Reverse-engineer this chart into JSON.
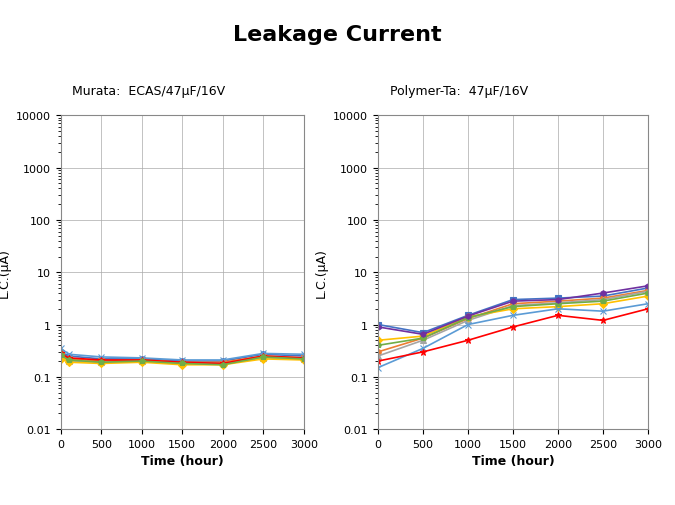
{
  "title": "Leakage Current",
  "title_fontsize": 16,
  "title_fontweight": "bold",
  "left_subtitle": "Murata:  ECAS/47μF/16V",
  "right_subtitle": "Polymer-Ta:  47μF/16V",
  "xlabel": "Time (hour)",
  "ylabel": "L.C.(μA)",
  "x_ticks": [
    0,
    500,
    1000,
    1500,
    2000,
    2500,
    3000
  ],
  "xlim": [
    0,
    3000
  ],
  "ylim": [
    0.01,
    10000
  ],
  "left_series": [
    {
      "x": [
        0,
        100,
        500,
        1000,
        1500,
        2000,
        2500,
        3000
      ],
      "y": [
        0.3,
        0.25,
        0.22,
        0.22,
        0.2,
        0.2,
        0.27,
        0.25
      ],
      "color": "#4472C4",
      "marker": "o",
      "ms": 4
    },
    {
      "x": [
        0,
        100,
        500,
        1000,
        1500,
        2000,
        2500,
        3000
      ],
      "y": [
        0.28,
        0.22,
        0.2,
        0.21,
        0.19,
        0.19,
        0.25,
        0.23
      ],
      "color": "#ED7D31",
      "marker": "s",
      "ms": 4
    },
    {
      "x": [
        0,
        100,
        500,
        1000,
        1500,
        2000,
        2500,
        3000
      ],
      "y": [
        0.25,
        0.2,
        0.19,
        0.2,
        0.18,
        0.18,
        0.23,
        0.22
      ],
      "color": "#A5A5A5",
      "marker": "^",
      "ms": 4
    },
    {
      "x": [
        0,
        100,
        500,
        1000,
        1500,
        2000,
        2500,
        3000
      ],
      "y": [
        0.22,
        0.19,
        0.18,
        0.19,
        0.17,
        0.17,
        0.22,
        0.21
      ],
      "color": "#FFC000",
      "marker": "D",
      "ms": 4
    },
    {
      "x": [
        0,
        100,
        500,
        1000,
        1500,
        2000,
        2500,
        3000
      ],
      "y": [
        0.35,
        0.27,
        0.24,
        0.23,
        0.21,
        0.21,
        0.28,
        0.27
      ],
      "color": "#5B9BD5",
      "marker": "x",
      "ms": 4
    },
    {
      "x": [
        0,
        100,
        500,
        1000,
        1500,
        2000,
        2500,
        3000
      ],
      "y": [
        0.28,
        0.23,
        0.21,
        0.21,
        0.19,
        0.18,
        0.25,
        0.23
      ],
      "color": "#FF0000",
      "marker": "*",
      "ms": 5
    },
    {
      "x": [
        0,
        100,
        500,
        1000,
        1500,
        2000,
        2500,
        3000
      ],
      "y": [
        0.26,
        0.21,
        0.19,
        0.2,
        0.18,
        0.17,
        0.24,
        0.22
      ],
      "color": "#70AD47",
      "marker": "p",
      "ms": 4
    }
  ],
  "right_series": [
    {
      "x": [
        0,
        500,
        1000,
        1500,
        2000,
        2500,
        3000
      ],
      "y": [
        1.0,
        0.7,
        1.5,
        3.0,
        3.2,
        3.5,
        5.0
      ],
      "color": "#4472C4",
      "marker": "s",
      "ms": 5
    },
    {
      "x": [
        0,
        500,
        1000,
        1500,
        2000,
        2500,
        3000
      ],
      "y": [
        0.3,
        0.55,
        1.3,
        2.5,
        2.8,
        3.2,
        4.5
      ],
      "color": "#ED7D31",
      "marker": "o",
      "ms": 4
    },
    {
      "x": [
        0,
        500,
        1000,
        1500,
        2000,
        2500,
        3000
      ],
      "y": [
        0.25,
        0.5,
        1.2,
        2.3,
        2.6,
        3.0,
        4.3
      ],
      "color": "#A5A5A5",
      "marker": "^",
      "ms": 4
    },
    {
      "x": [
        0,
        500,
        1000,
        1500,
        2000,
        2500,
        3000
      ],
      "y": [
        0.5,
        0.6,
        1.4,
        2.0,
        2.2,
        2.5,
        3.5
      ],
      "color": "#FFC000",
      "marker": "D",
      "ms": 4
    },
    {
      "x": [
        0,
        500,
        1000,
        1500,
        2000,
        2500,
        3000
      ],
      "y": [
        0.15,
        0.35,
        1.0,
        1.5,
        2.0,
        1.8,
        2.5
      ],
      "color": "#5B9BD5",
      "marker": "x",
      "ms": 4
    },
    {
      "x": [
        0,
        500,
        1000,
        1500,
        2000,
        2500,
        3000
      ],
      "y": [
        0.2,
        0.3,
        0.5,
        0.9,
        1.5,
        1.2,
        2.0
      ],
      "color": "#FF0000",
      "marker": "*",
      "ms": 5
    },
    {
      "x": [
        0,
        500,
        1000,
        1500,
        2000,
        2500,
        3000
      ],
      "y": [
        0.4,
        0.55,
        1.35,
        2.2,
        2.5,
        2.8,
        4.0
      ],
      "color": "#70AD47",
      "marker": "p",
      "ms": 4
    },
    {
      "x": [
        0,
        500,
        1000,
        1500,
        2000,
        2500,
        3000
      ],
      "y": [
        0.9,
        0.65,
        1.45,
        2.8,
        3.0,
        4.0,
        5.5
      ],
      "color": "#7030A0",
      "marker": "h",
      "ms": 4
    }
  ],
  "background_color": "#FFFFFF",
  "grid_color": "#AAAAAA",
  "axes_color": "#888888"
}
